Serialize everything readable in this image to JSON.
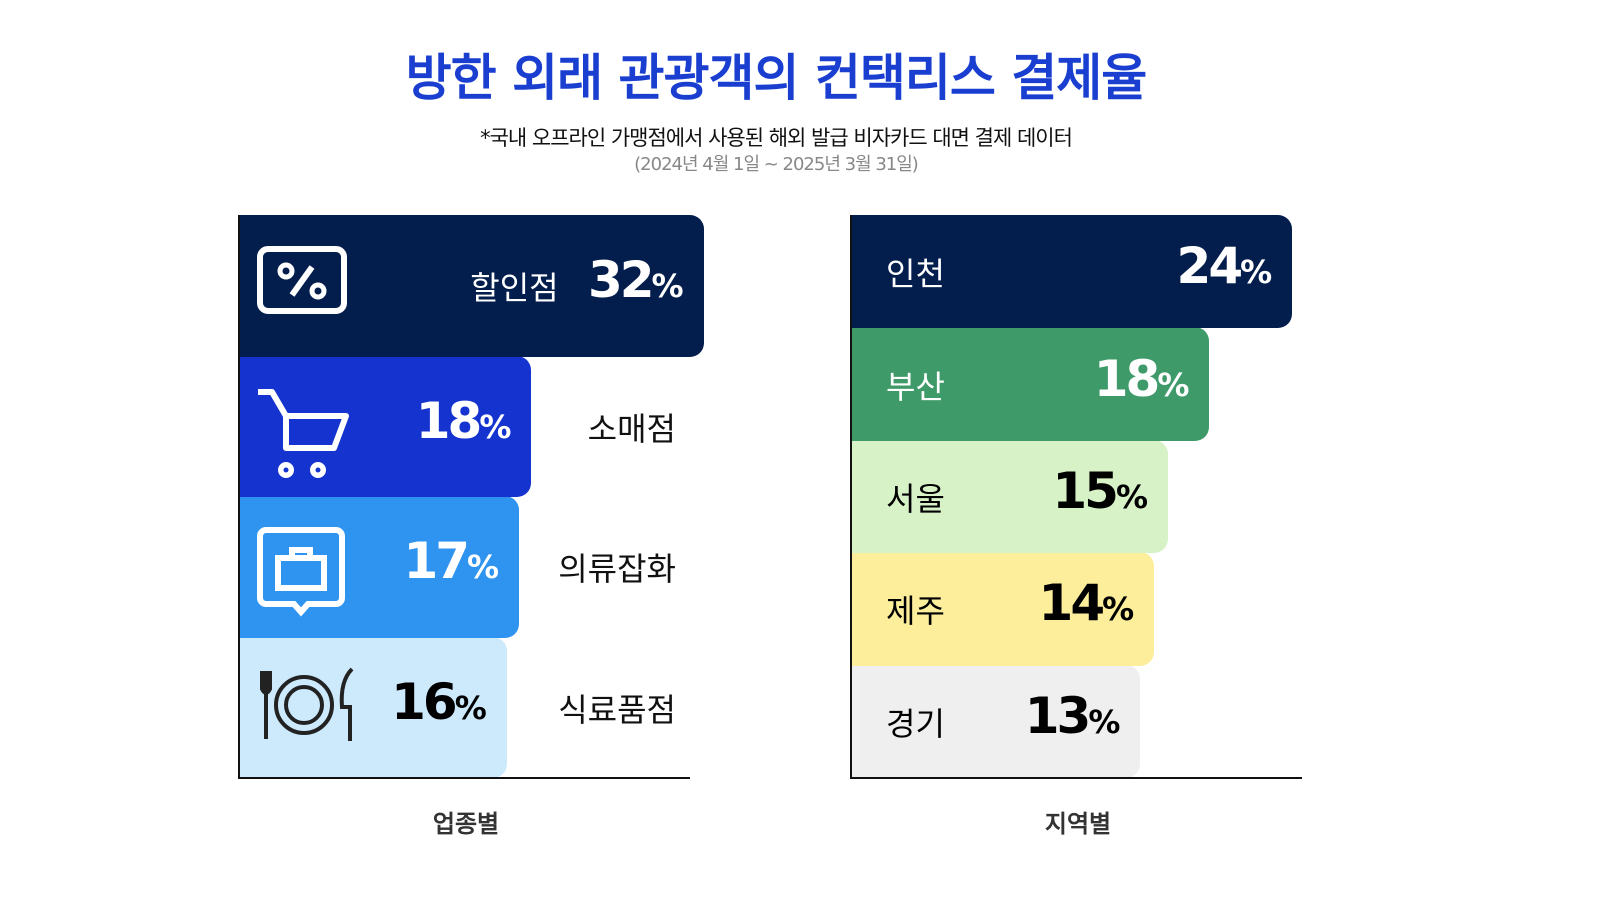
{
  "title": "방한 외래 관광객의 컨택리스 결제율",
  "subtitle": "*국내 오프라인 가맹점에서 사용된 해외 발급 비자카드 대면 결제 데이터",
  "period": "(2024년 4월 1일 ~ 2025년 3월 31일)",
  "chart_data": [
    {
      "type": "bar",
      "orientation": "horizontal",
      "xlabel": "업종별",
      "unit": "%",
      "categories": [
        "할인점",
        "소매점",
        "의류잡화",
        "식료품점"
      ],
      "values": [
        32,
        18,
        17,
        16
      ],
      "colors": [
        "#031e4c",
        "#1433cf",
        "#2f94f0",
        "#cdeafd"
      ],
      "text_colors": [
        "#ffffff",
        "#ffffff",
        "#ffffff",
        "#000000"
      ],
      "icons": [
        "discount-tag-icon",
        "shopping-cart-icon",
        "shopping-bag-icon",
        "dining-icon"
      ]
    },
    {
      "type": "bar",
      "orientation": "horizontal",
      "xlabel": "지역별",
      "unit": "%",
      "categories": [
        "인천",
        "부산",
        "서울",
        "제주",
        "경기"
      ],
      "values": [
        24,
        18,
        15,
        14,
        13
      ],
      "colors": [
        "#031e4c",
        "#3f9a6a",
        "#d8f2c8",
        "#fcee9b",
        "#efefef"
      ],
      "text_colors": [
        "#ffffff",
        "#ffffff",
        "#000000",
        "#000000",
        "#000000"
      ]
    }
  ]
}
